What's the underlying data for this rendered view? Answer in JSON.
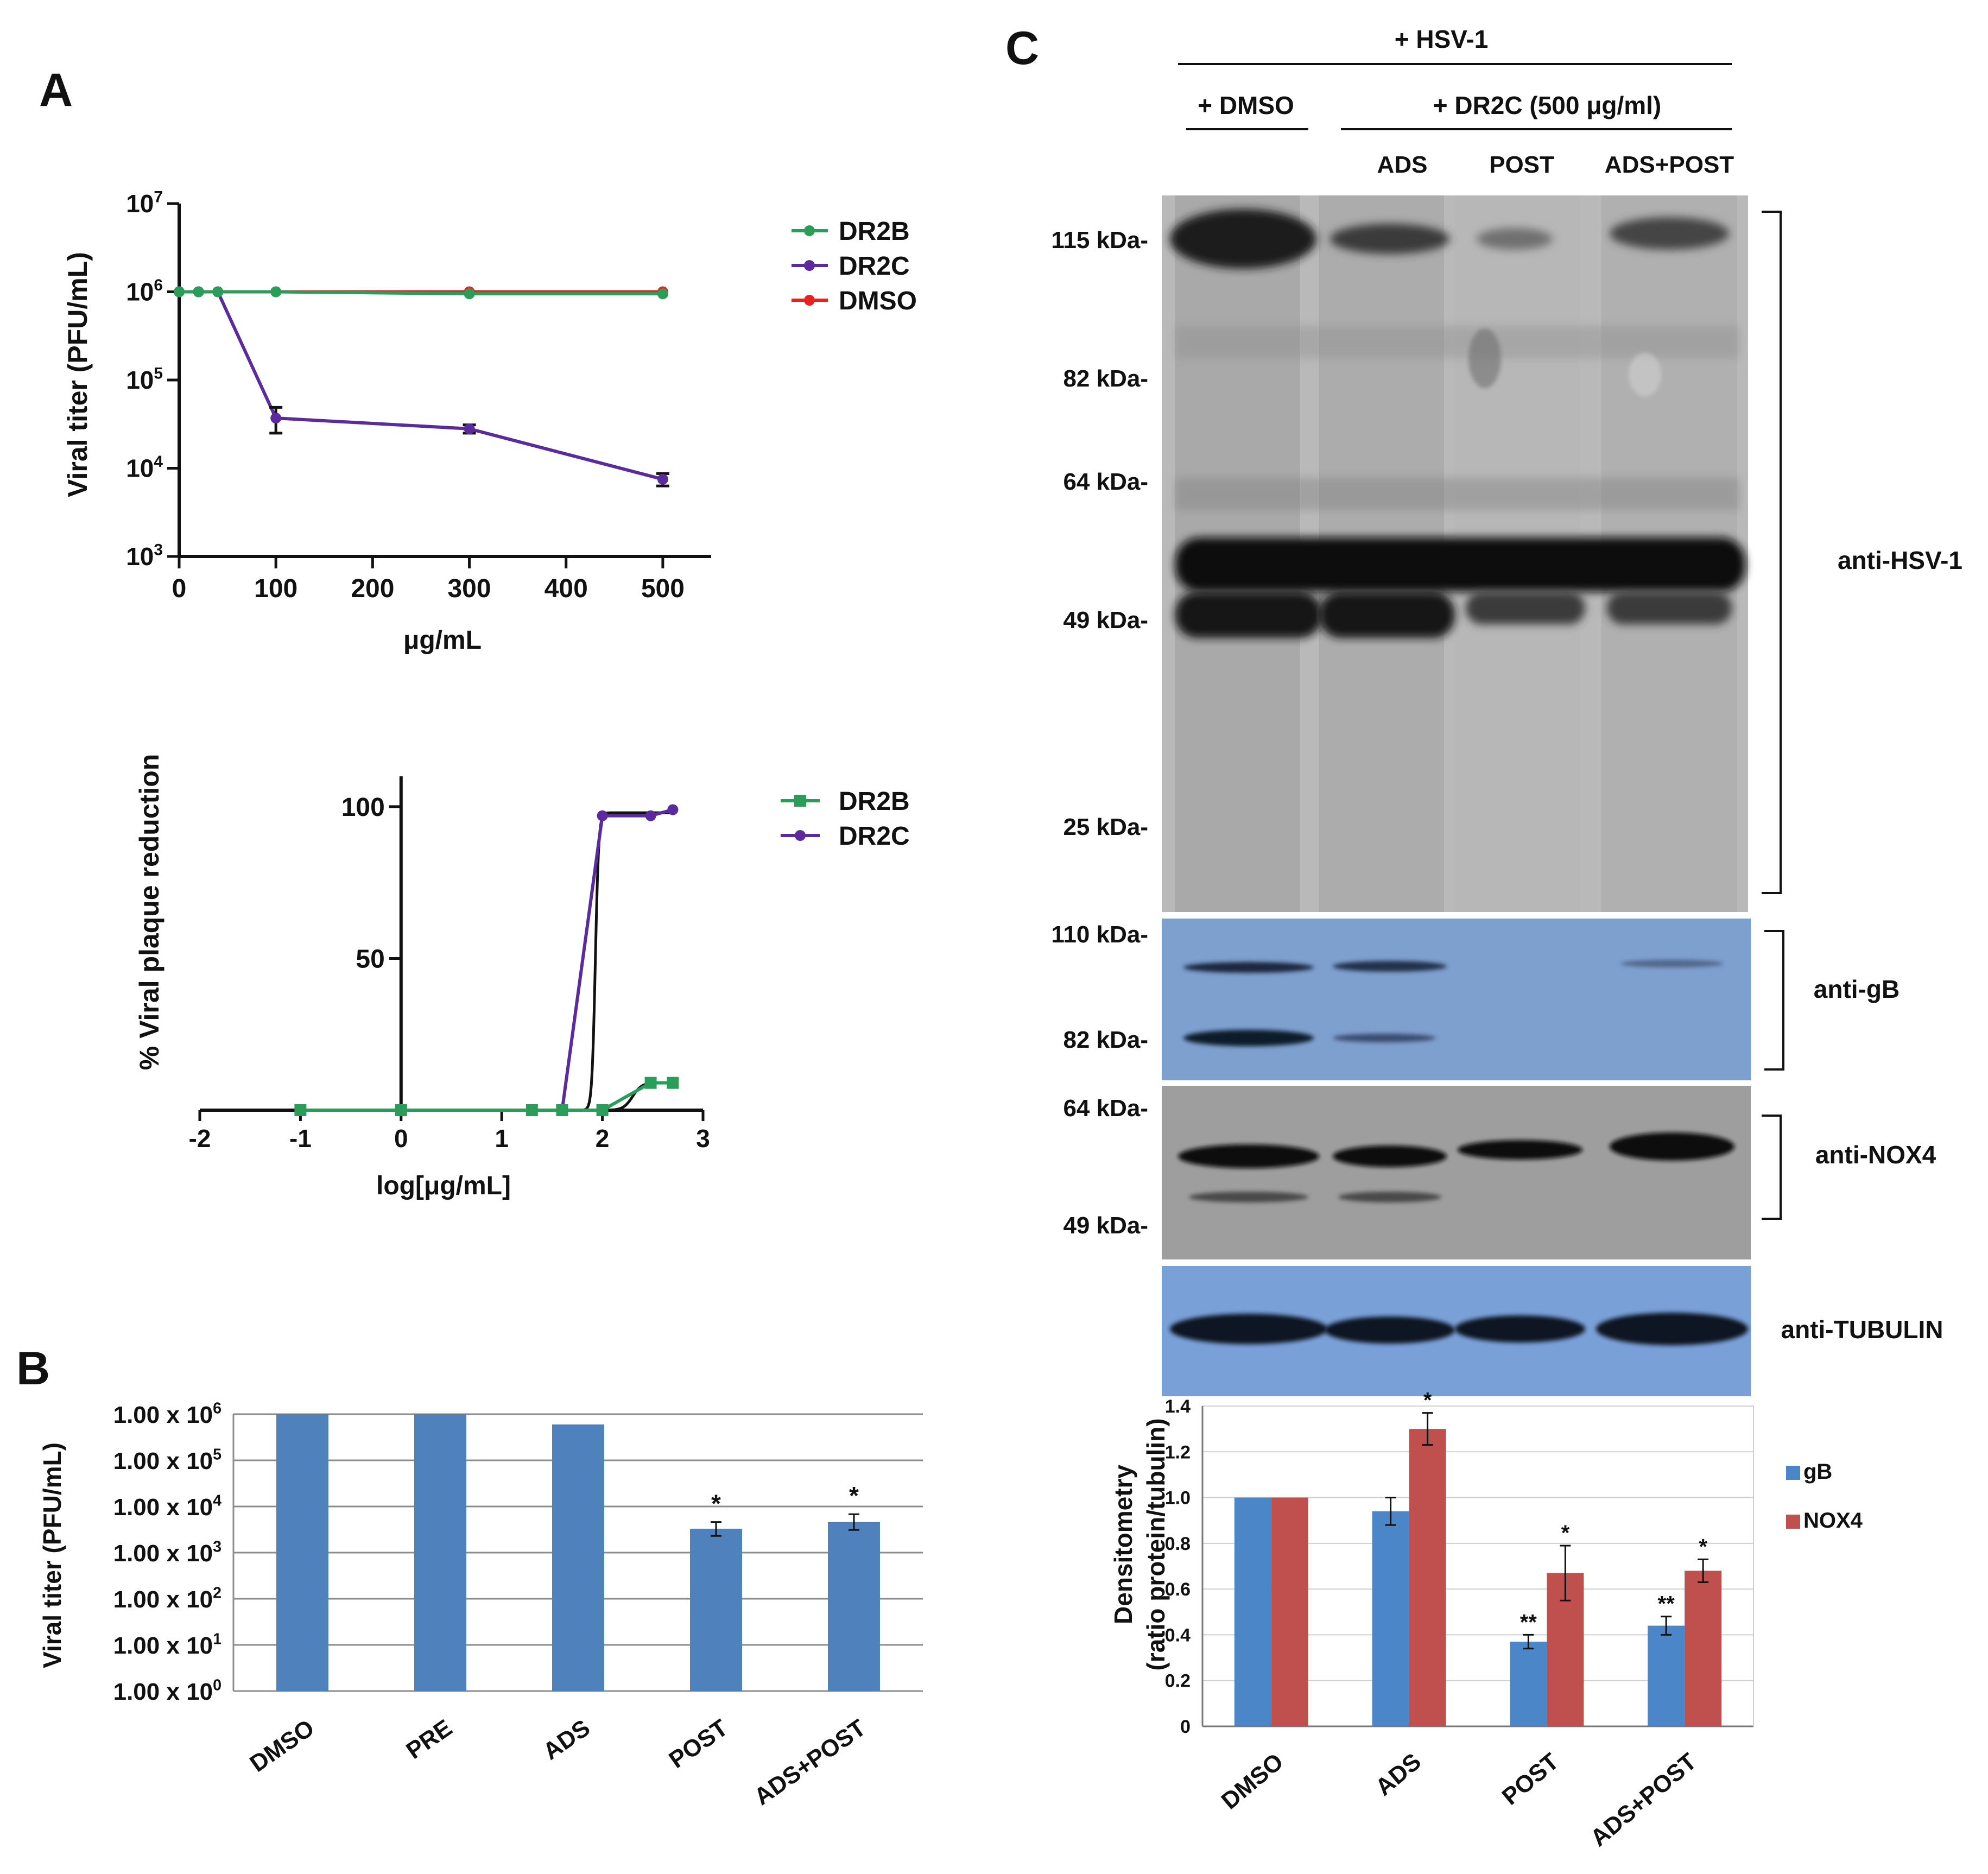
{
  "panels": {
    "A": "A",
    "B": "B",
    "C": "C"
  },
  "chart_data": [
    {
      "id": "A1",
      "type": "line",
      "ylabel": "Viral titer (PFU/mL)",
      "xlabel": "μg/mL",
      "yscale": "log",
      "ylim": [
        1000,
        10000000
      ],
      "xlim": [
        0,
        550
      ],
      "xticks": [
        "0",
        "100",
        "200",
        "300",
        "400",
        "500"
      ],
      "yticks": [
        {
          "base": "10",
          "exp": "3"
        },
        {
          "base": "10",
          "exp": "4"
        },
        {
          "base": "10",
          "exp": "5"
        },
        {
          "base": "10",
          "exp": "6"
        },
        {
          "base": "10",
          "exp": "7"
        }
      ],
      "series": [
        {
          "name": "DR2B",
          "color": "#2a9d58",
          "x": [
            0,
            20,
            40,
            100,
            300,
            500
          ],
          "y": [
            1000000,
            1000000,
            1000000,
            1000000,
            950000,
            950000
          ],
          "err": [
            0,
            0,
            0,
            0,
            0,
            0
          ]
        },
        {
          "name": "DR2C",
          "color": "#5b2a9e",
          "x": [
            0,
            20,
            40,
            100,
            300,
            500
          ],
          "y": [
            1000000,
            1000000,
            1000000,
            37000,
            28000,
            7500
          ],
          "err": [
            0,
            0,
            0,
            12000,
            3000,
            1200
          ]
        },
        {
          "name": "DMSO",
          "color": "#e8231f",
          "x": [
            0,
            20,
            40,
            100,
            300,
            500
          ],
          "y": [
            1000000,
            1000000,
            1000000,
            1000000,
            1000000,
            1000000
          ],
          "err": [
            0,
            0,
            0,
            0,
            0,
            0
          ]
        }
      ]
    },
    {
      "id": "A2",
      "type": "line",
      "ylabel": "% Viral plaque reduction",
      "xlabel": "log[μg/mL]",
      "xlim": [
        -2,
        3
      ],
      "ylim": [
        0,
        110
      ],
      "xticks": [
        "-2",
        "-1",
        "0",
        "1",
        "2",
        "3"
      ],
      "yticks": [
        "50",
        "100"
      ],
      "series": [
        {
          "name": "DR2B",
          "color": "#2a9d58",
          "x": [
            -1,
            0,
            1.3,
            1.6,
            2,
            2.48,
            2.7
          ],
          "y": [
            0,
            0,
            0,
            0,
            0,
            9,
            9
          ]
        },
        {
          "name": "DR2C",
          "color": "#5b2a9e",
          "x": [
            -1,
            0,
            1.3,
            1.6,
            2,
            2.48,
            2.7
          ],
          "y": [
            0,
            0,
            0,
            0,
            97,
            97,
            99
          ]
        }
      ]
    },
    {
      "id": "B",
      "type": "bar",
      "ylabel": "Viral titer (PFU/mL)",
      "yscale": "log",
      "categories": [
        "DMSO",
        "PRE",
        "ADS",
        "POST",
        "ADS+POST"
      ],
      "values": [
        1000000,
        1000000,
        600000,
        3300,
        4600
      ],
      "errors_low": [
        0,
        0,
        0,
        1000,
        1500
      ],
      "errors_high": [
        0,
        0,
        0,
        1300,
        2200
      ],
      "significance": [
        "",
        "",
        "",
        "*",
        "*"
      ],
      "yticks": [
        {
          "base": "1.00 x 10",
          "exp": "0"
        },
        {
          "base": "1.00 x 10",
          "exp": "1"
        },
        {
          "base": "1.00 x 10",
          "exp": "2"
        },
        {
          "base": "1.00 x 10",
          "exp": "3"
        },
        {
          "base": "1.00 x 10",
          "exp": "4"
        },
        {
          "base": "1.00 x 10",
          "exp": "5"
        },
        {
          "base": "1.00 x 10",
          "exp": "6"
        }
      ],
      "color": "#4f81bd"
    },
    {
      "id": "C-densitometry",
      "type": "bar",
      "ylabel_line1": "Densitometry",
      "ylabel_line2": "(ratio protein/tubulin)",
      "categories": [
        "DMSO",
        "ADS",
        "POST",
        "ADS+POST"
      ],
      "ylim": [
        0,
        1.4
      ],
      "yticks": [
        "0",
        "0.2",
        "0.4",
        "0.6",
        "0.8",
        "1.0",
        "1.2",
        "1.4"
      ],
      "series": [
        {
          "name": "gB",
          "color": "#4a86c8",
          "values": [
            1.0,
            0.94,
            0.37,
            0.44
          ],
          "err": [
            0,
            0.06,
            0.03,
            0.04
          ],
          "sig": [
            "",
            "",
            "**",
            "**"
          ]
        },
        {
          "name": "NOX4",
          "color": "#c0504d",
          "values": [
            1.0,
            1.3,
            0.67,
            0.68
          ],
          "err": [
            0,
            0.07,
            0.12,
            0.05
          ],
          "sig": [
            "",
            "*",
            "*",
            "*"
          ]
        }
      ]
    }
  ],
  "blot": {
    "header_hsv": "+ HSV-1",
    "header_dmso": "+ DMSO",
    "header_dr2c": "+ DR2C (500 μg/ml)",
    "lanes": [
      "ADS",
      "POST",
      "ADS+POST"
    ],
    "markers_main": [
      "115 kDa-",
      "82 kDa-",
      "64 kDa-",
      "49 kDa-",
      "25 kDa-"
    ],
    "markers_gb": [
      "110 kDa-",
      "82 kDa-"
    ],
    "markers_nox": [
      "64 kDa-",
      "49 kDa-"
    ],
    "labels": [
      "anti-HSV-1",
      "anti-gB",
      "anti-NOX4",
      "anti-TUBULIN"
    ]
  }
}
